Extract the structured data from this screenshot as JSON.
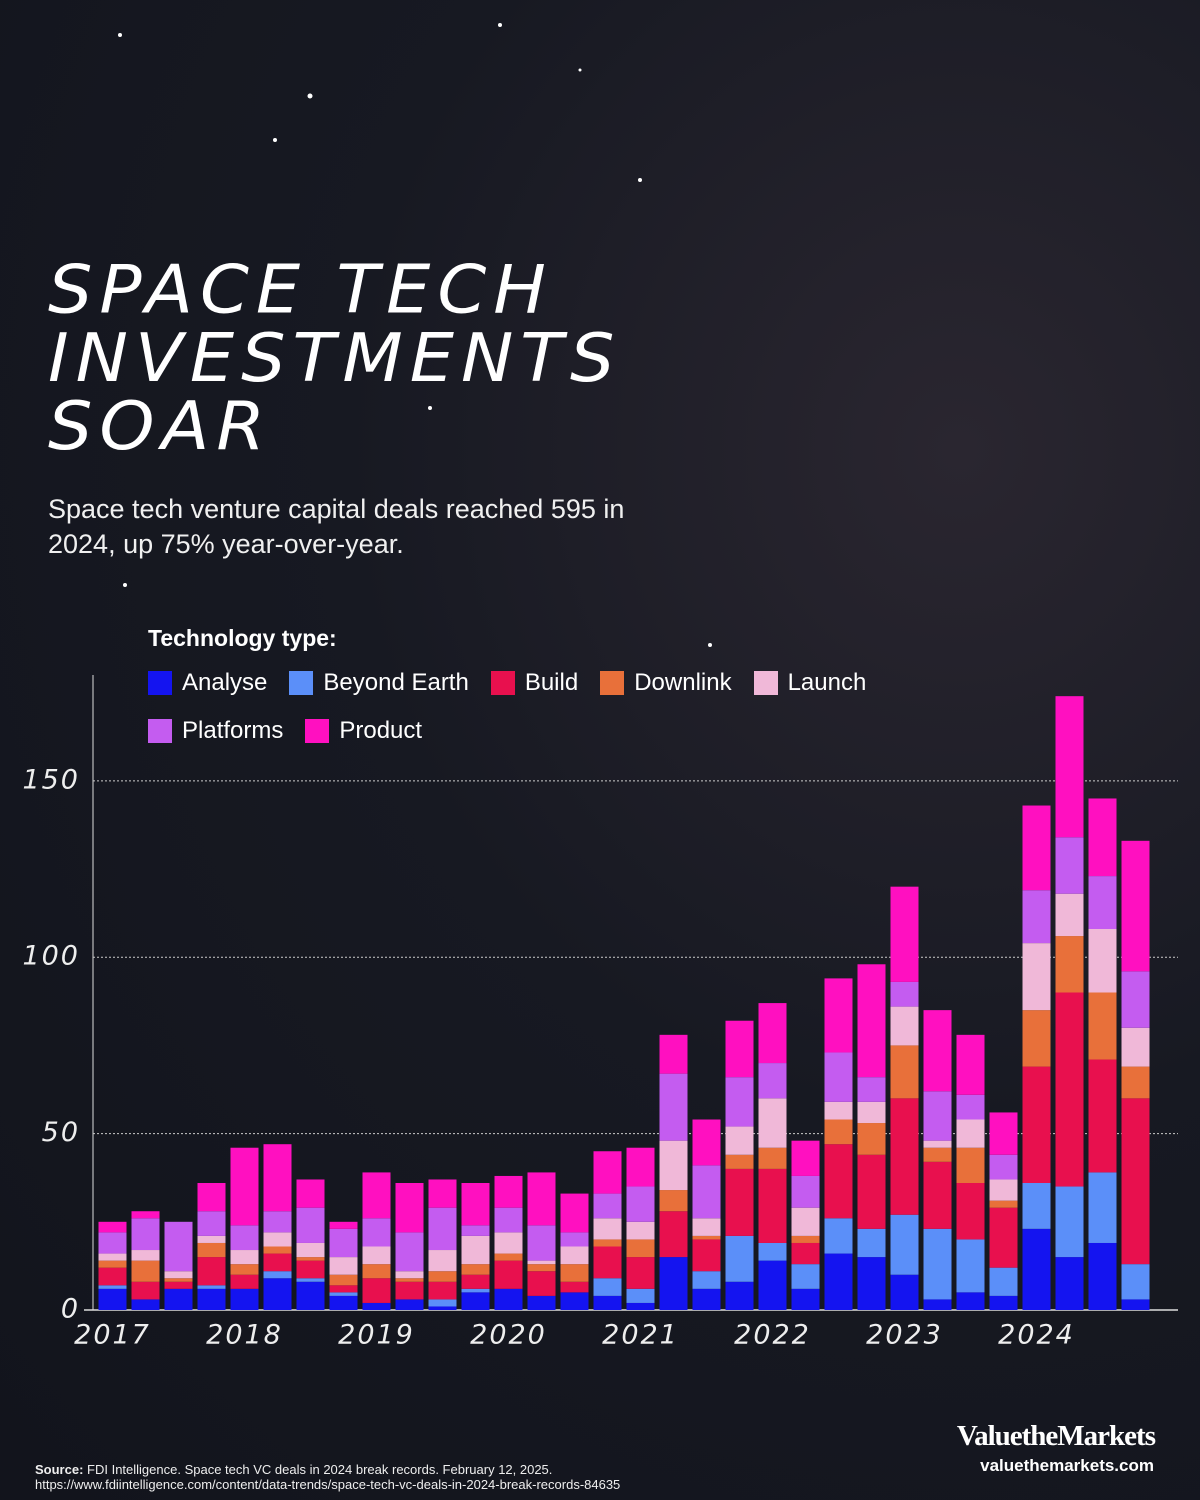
{
  "chart_data": {
    "type": "stacked-bar",
    "title": "SPACE TECH INVESTMENTS SOAR",
    "subtitle": "Space tech venture capital deals reached 595 in 2024, up 75% year-over-year.",
    "legend_title": "Technology type:",
    "categories": [
      "2017",
      null,
      null,
      null,
      "2018",
      null,
      null,
      null,
      "2019",
      null,
      null,
      null,
      "2020",
      null,
      null,
      null,
      "2021",
      null,
      null,
      null,
      "2022",
      null,
      null,
      null,
      "2023",
      null,
      null,
      null,
      "2024",
      null,
      null,
      null
    ],
    "series": [
      {
        "name": "Analyse",
        "color": "#1414f0",
        "values": [
          6,
          3,
          6,
          6,
          6,
          9,
          8,
          4,
          2,
          3,
          1,
          5,
          6,
          4,
          5,
          4,
          2,
          15,
          6,
          8,
          14,
          6,
          16,
          15,
          10,
          3,
          5,
          4,
          23,
          15,
          19,
          3
        ]
      },
      {
        "name": "Beyond Earth",
        "color": "#5b8ff9",
        "values": [
          1,
          0,
          0,
          1,
          0,
          2,
          1,
          1,
          0,
          0,
          2,
          1,
          0,
          0,
          0,
          5,
          4,
          0,
          5,
          13,
          5,
          7,
          10,
          8,
          17,
          20,
          15,
          8,
          13,
          20,
          20,
          10
        ]
      },
      {
        "name": "Build",
        "color": "#e8104e",
        "values": [
          5,
          5,
          2,
          8,
          4,
          5,
          5,
          2,
          7,
          5,
          5,
          4,
          8,
          7,
          3,
          9,
          9,
          13,
          9,
          19,
          21,
          6,
          21,
          21,
          33,
          19,
          16,
          17,
          33,
          55,
          32,
          47
        ]
      },
      {
        "name": "Downlink",
        "color": "#e8703a",
        "values": [
          2,
          6,
          1,
          4,
          3,
          2,
          1,
          3,
          4,
          1,
          3,
          3,
          2,
          2,
          5,
          2,
          5,
          6,
          1,
          4,
          6,
          2,
          7,
          9,
          15,
          4,
          10,
          2,
          16,
          16,
          19,
          9
        ]
      },
      {
        "name": "Launch",
        "color": "#f0b8d8",
        "values": [
          2,
          3,
          2,
          2,
          4,
          4,
          4,
          5,
          5,
          2,
          6,
          8,
          6,
          1,
          5,
          6,
          5,
          14,
          5,
          8,
          14,
          8,
          5,
          6,
          11,
          2,
          8,
          6,
          19,
          12,
          18,
          11
        ]
      },
      {
        "name": "Platforms",
        "color": "#c45cf0",
        "values": [
          6,
          9,
          14,
          7,
          7,
          6,
          10,
          8,
          8,
          11,
          12,
          3,
          7,
          10,
          4,
          7,
          10,
          19,
          15,
          14,
          10,
          9,
          14,
          7,
          7,
          14,
          7,
          7,
          15,
          16,
          15,
          16
        ]
      },
      {
        "name": "Product",
        "color": "#ff10c0",
        "values": [
          3,
          2,
          0,
          8,
          22,
          19,
          8,
          2,
          13,
          14,
          8,
          12,
          9,
          15,
          11,
          12,
          11,
          11,
          13,
          16,
          17,
          10,
          21,
          32,
          27,
          23,
          17,
          12,
          24,
          40,
          22,
          37
        ]
      }
    ],
    "ylim": [
      0,
      180
    ],
    "yticks": [
      0,
      50,
      100,
      150
    ],
    "grid": true,
    "source_label": "Source:",
    "source_text": "FDI Intelligence. Space tech VC deals in 2024 break records. February 12, 2025.",
    "source_url": "https://www.fdiintelligence.com/content/data-trends/space-tech-vc-deals-in-2024-break-records-84635",
    "brand": "ValuetheMarkets",
    "brand_url": "valuethemarkets.com"
  }
}
